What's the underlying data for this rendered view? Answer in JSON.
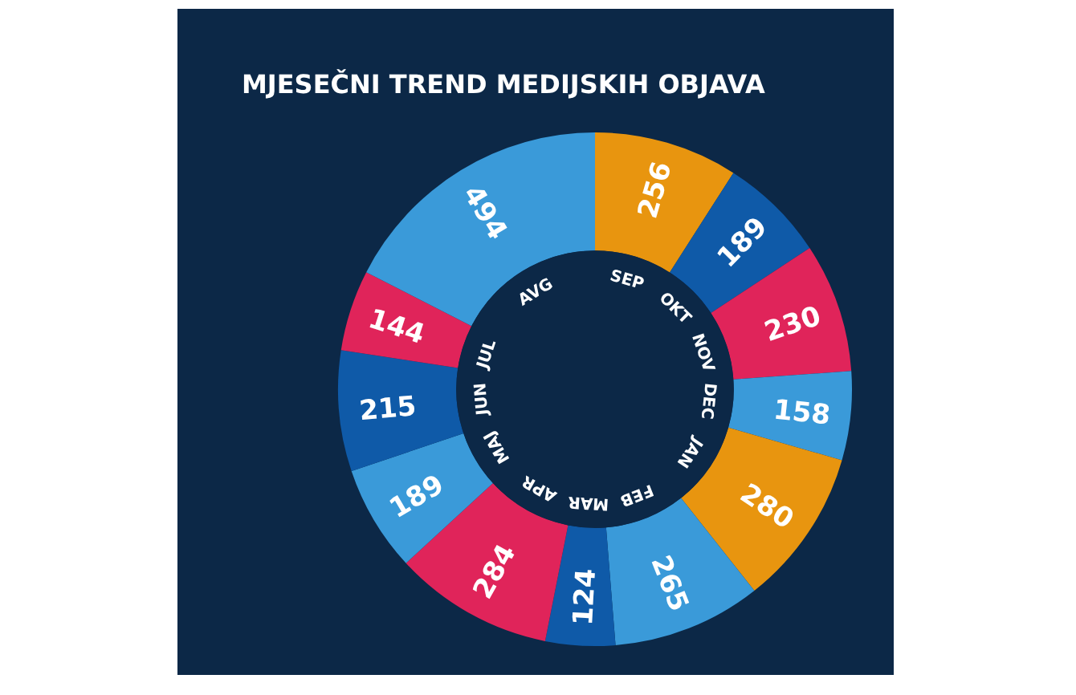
{
  "chart_data": {
    "type": "donut",
    "title": "MJESEČNI TREND MEDIJSKIH OBJAVA",
    "categories": [
      "SEP",
      "OKT",
      "NOV",
      "DEC",
      "JAN",
      "FEB",
      "MAR",
      "APR",
      "MAJ",
      "JUN",
      "JUL",
      "AVG"
    ],
    "values": [
      256,
      189,
      230,
      158,
      280,
      265,
      124,
      284,
      189,
      215,
      144,
      494
    ],
    "colors": [
      "#e8950f",
      "#0f5aa8",
      "#e0245a",
      "#3a9ad9",
      "#e8950f",
      "#3a9ad9",
      "#0f5aa8",
      "#e0245a",
      "#3a9ad9",
      "#0f5aa8",
      "#e0245a",
      "#3a9ad9"
    ],
    "data_labels": true
  }
}
